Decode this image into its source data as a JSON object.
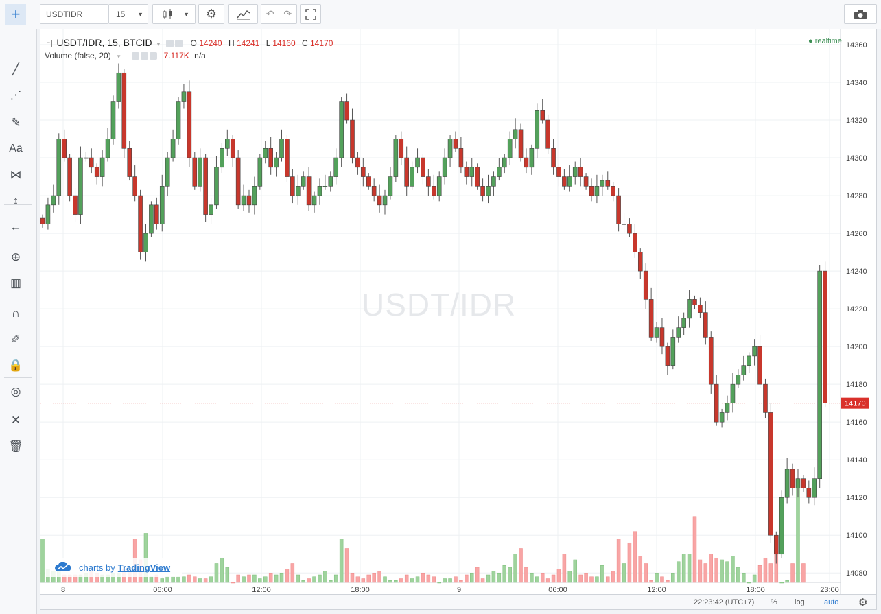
{
  "toolbar": {
    "symbol": "USDTIDR",
    "interval": "15",
    "chart_type_icon": "candles-icon",
    "settings_icon": "gear-icon",
    "indicators_icon": "indicators-icon",
    "undo_icon": "undo-icon",
    "redo_icon": "redo-icon",
    "fullscreen_icon": "fullscreen-icon",
    "snapshot_icon": "camera-icon"
  },
  "left_tools": [
    {
      "name": "crosshair-icon",
      "glyph": "+"
    },
    {
      "name": "trend-line-icon",
      "glyph": "╱"
    },
    {
      "name": "fib-icon",
      "glyph": "⋰"
    },
    {
      "name": "brush-icon",
      "glyph": "✎"
    },
    {
      "name": "text-icon",
      "glyph": "Aa"
    },
    {
      "name": "pattern-icon",
      "glyph": "⋈"
    },
    {
      "name": "measure-icon",
      "glyph": "↕"
    },
    {
      "name": "back-arrow-icon",
      "glyph": "←"
    },
    {
      "name": "zoom-icon",
      "glyph": "⊕"
    },
    {
      "name": "ruler-icon",
      "glyph": "▥"
    },
    {
      "name": "magnet-icon",
      "glyph": "∩"
    },
    {
      "name": "pencil-lock-icon",
      "glyph": "✐"
    },
    {
      "name": "lock-icon",
      "glyph": "🔒"
    },
    {
      "name": "eye-hidden-icon",
      "glyph": "◎"
    },
    {
      "name": "tools-icon",
      "glyph": "✕"
    },
    {
      "name": "trash-icon",
      "glyph": "🗑"
    }
  ],
  "legend": {
    "series_title": "USDT/IDR, 15, BTCID",
    "o_label": "O",
    "o_value": "14240",
    "h_label": "H",
    "h_value": "14241",
    "l_label": "L",
    "l_value": "14160",
    "c_label": "C",
    "c_value": "14170",
    "volume_title": "Volume (false, 20)",
    "volume_value": "7.117K",
    "volume_extra": "n/a",
    "realtime": "realtime"
  },
  "watermark": "USDT/IDR",
  "branding": {
    "prefix": "charts by",
    "name": "TradingView"
  },
  "price_axis": {
    "ticks": [
      "14360",
      "14340",
      "14320",
      "14300",
      "14280",
      "14260",
      "14240",
      "14220",
      "14200",
      "14180",
      "14160",
      "14140",
      "14120",
      "14100",
      "14080"
    ],
    "last_price": "14170"
  },
  "time_axis": {
    "ticks": [
      "8",
      "06:00",
      "12:00",
      "18:00",
      "9",
      "06:00",
      "12:00",
      "18:00",
      "23:00"
    ]
  },
  "bottom": {
    "clock": "22:23:42 (UTC+7)",
    "percent": "%",
    "log": "log",
    "auto": "auto",
    "settings_icon": "gear-icon"
  },
  "colors": {
    "up": "#53a15b",
    "down": "#c8372c",
    "up_vol": "#9fd39d",
    "down_vol": "#f8a5a5",
    "last_price_line": "#d9302a",
    "auto": "#2e7bcf"
  },
  "chart_data": {
    "type": "candlestick",
    "symbol": "USDT/IDR",
    "interval": "15",
    "exchange": "BTCID",
    "y_range": [
      14075,
      14368
    ],
    "close_series": [
      14265,
      14275,
      14280,
      14310,
      14300,
      14280,
      14270,
      14300,
      14300,
      14295,
      14290,
      14300,
      14310,
      14330,
      14345,
      14305,
      14290,
      14280,
      14250,
      14260,
      14275,
      14265,
      14285,
      14300,
      14310,
      14330,
      14335,
      14300,
      14285,
      14300,
      14270,
      14275,
      14295,
      14305,
      14310,
      14300,
      14275,
      14280,
      14275,
      14285,
      14300,
      14305,
      14295,
      14300,
      14310,
      14290,
      14280,
      14285,
      14290,
      14275,
      14280,
      14285,
      14285,
      14290,
      14300,
      14330,
      14320,
      14300,
      14295,
      14290,
      14285,
      14280,
      14275,
      14280,
      14290,
      14310,
      14300,
      14285,
      14295,
      14300,
      14290,
      14285,
      14280,
      14290,
      14300,
      14310,
      14305,
      14295,
      14290,
      14295,
      14285,
      14280,
      14285,
      14290,
      14295,
      14300,
      14310,
      14315,
      14300,
      14295,
      14305,
      14325,
      14320,
      14305,
      14295,
      14290,
      14285,
      14290,
      14295,
      14290,
      14285,
      14280,
      14285,
      14288,
      14285,
      14280,
      14265,
      14265,
      14260,
      14250,
      14240,
      14225,
      14205,
      14210,
      14200,
      14190,
      14205,
      14210,
      14215,
      14225,
      14222,
      14218,
      14205,
      14180,
      14160,
      14165,
      14170,
      14180,
      14185,
      14190,
      14195,
      14200,
      14180,
      14165,
      14100,
      14090,
      14120,
      14135,
      14125,
      14130,
      14125,
      14120,
      14130,
      14240,
      14170
    ],
    "volume_series": [
      14098,
      14082,
      14081,
      14081,
      14079,
      14079,
      14079,
      14079,
      14080,
      14081,
      14080,
      14079,
      14079,
      14080,
      14080,
      14082,
      14081,
      14098,
      14087,
      14101,
      14078,
      14079,
      14077,
      14078,
      14078,
      14078,
      14078,
      14079,
      14078,
      14077,
      14077,
      14078,
      14085,
      14088,
      14083,
      14075,
      14079,
      14078,
      14079,
      14079,
      14077,
      14078,
      14080,
      14079,
      14080,
      14082,
      14085,
      14079,
      14076,
      14077,
      14078,
      14079,
      14081,
      14076,
      14079,
      14098,
      14093,
      14080,
      14078,
      14077,
      14079,
      14080,
      14081,
      14078,
      14076,
      14076,
      14077,
      14079,
      14077,
      14078,
      14080,
      14079,
      14078,
      14075,
      14077,
      14077,
      14078,
      14076,
      14079,
      14080,
      14083,
      14077,
      14079,
      14081,
      14080,
      14084,
      14083,
      14090,
      14093,
      14083,
      14080,
      14078,
      14080,
      14077,
      14079,
      14082,
      14090,
      14081,
      14087,
      14079,
      14080,
      14078,
      14078,
      14084,
      14078,
      14081,
      14098,
      14085,
      14096,
      14102,
      14089,
      14085,
      14076,
      14080,
      14078,
      14076,
      14080,
      14086,
      14090,
      14090,
      14110,
      14087,
      14085,
      14090,
      14088,
      14087,
      14086,
      14089,
      14083,
      14080,
      14075,
      14079,
      14084,
      14088,
      14085,
      14090,
      14075,
      14076,
      14085,
      14125,
      14085
    ]
  }
}
